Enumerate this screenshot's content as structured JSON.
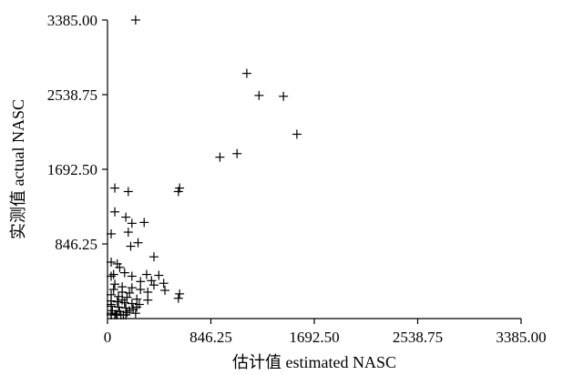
{
  "chart_data": {
    "type": "scatter",
    "title": "",
    "xlabel": "估计值 estimated NASC",
    "ylabel": "实测值 actual NASC",
    "xlim": [
      0,
      3385
    ],
    "ylim": [
      0,
      3385
    ],
    "x_ticks": [
      "0",
      "846.25",
      "1692.50",
      "2538.75",
      "3385.00"
    ],
    "y_ticks": [
      "846.25",
      "1692.50",
      "2538.75",
      "3385.00"
    ],
    "grid": false,
    "legend": "none",
    "marker": "plus",
    "color": "#000000",
    "points": [
      [
        230,
        3385
      ],
      [
        1140,
        2780
      ],
      [
        1240,
        2530
      ],
      [
        1440,
        2520
      ],
      [
        1550,
        2090
      ],
      [
        920,
        1830
      ],
      [
        1060,
        1870
      ],
      [
        590,
        1480
      ],
      [
        580,
        1440
      ],
      [
        60,
        1480
      ],
      [
        170,
        1440
      ],
      [
        60,
        1210
      ],
      [
        150,
        1150
      ],
      [
        200,
        1080
      ],
      [
        300,
        1090
      ],
      [
        170,
        980
      ],
      [
        0,
        960
      ],
      [
        250,
        860
      ],
      [
        190,
        820
      ],
      [
        380,
        700
      ],
      [
        30,
        640
      ],
      [
        80,
        620
      ],
      [
        100,
        580
      ],
      [
        140,
        520
      ],
      [
        10,
        480
      ],
      [
        50,
        500
      ],
      [
        200,
        480
      ],
      [
        320,
        500
      ],
      [
        420,
        490
      ],
      [
        360,
        430
      ],
      [
        270,
        420
      ],
      [
        380,
        380
      ],
      [
        460,
        400
      ],
      [
        60,
        390
      ],
      [
        120,
        360
      ],
      [
        200,
        350
      ],
      [
        270,
        330
      ],
      [
        470,
        320
      ],
      [
        330,
        300
      ],
      [
        590,
        280
      ],
      [
        580,
        230
      ],
      [
        120,
        300
      ],
      [
        30,
        270
      ],
      [
        90,
        250
      ],
      [
        160,
        240
      ],
      [
        240,
        220
      ],
      [
        330,
        210
      ],
      [
        20,
        200
      ],
      [
        80,
        190
      ],
      [
        140,
        180
      ],
      [
        200,
        170
      ],
      [
        260,
        160
      ],
      [
        30,
        140
      ],
      [
        90,
        130
      ],
      [
        150,
        120
      ],
      [
        210,
        110
      ],
      [
        40,
        90
      ],
      [
        100,
        80
      ],
      [
        160,
        70
      ],
      [
        20,
        60
      ],
      [
        70,
        50
      ],
      [
        130,
        40
      ],
      [
        10,
        30
      ],
      [
        60,
        20
      ],
      [
        110,
        15
      ],
      [
        30,
        10
      ],
      [
        80,
        5
      ],
      [
        150,
        25
      ],
      [
        180,
        90
      ],
      [
        230,
        60
      ],
      [
        120,
        210
      ],
      [
        50,
        330
      ],
      [
        180,
        290
      ],
      [
        0,
        160
      ],
      [
        240,
        130
      ]
    ]
  }
}
